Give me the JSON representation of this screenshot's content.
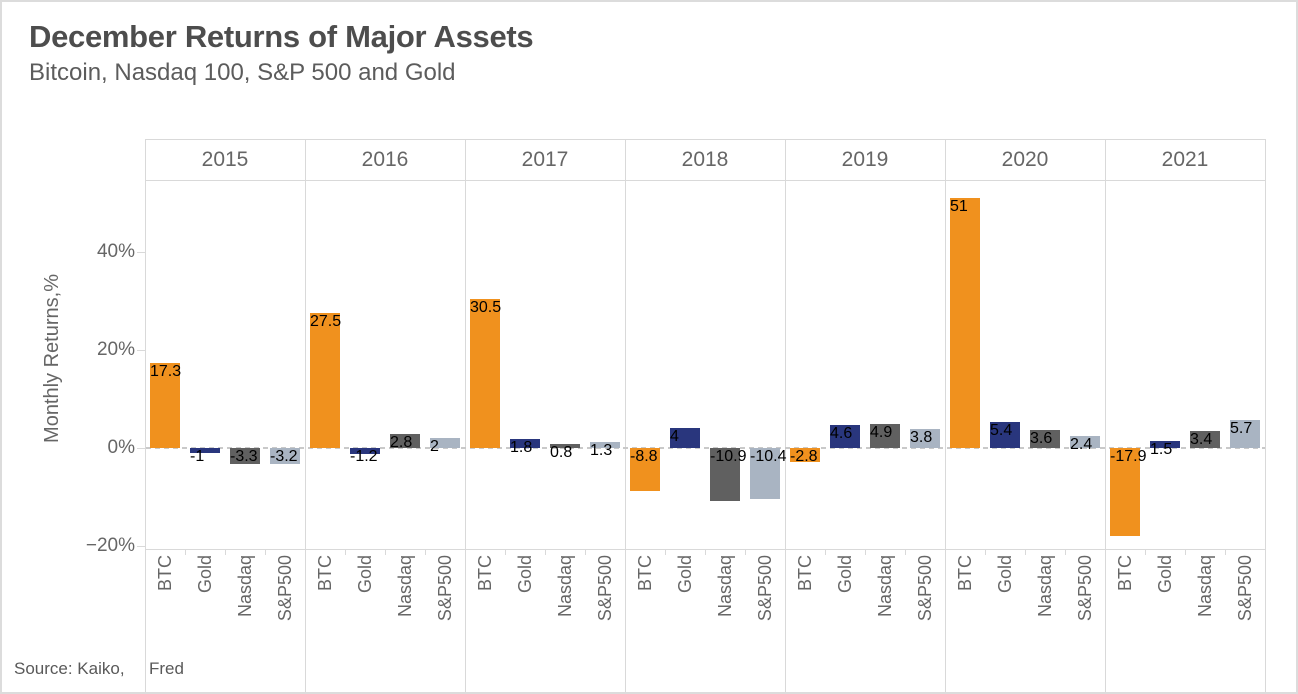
{
  "header": {
    "title": "December Returns of Major Assets",
    "subtitle": "Bitcoin, Nasdaq 100, S&P 500 and Gold"
  },
  "chart_data": {
    "type": "bar",
    "title": "December Returns of Major Assets",
    "subtitle": "Bitcoin, Nasdaq 100, S&P 500 and Gold",
    "xlabel": "",
    "ylabel": "Monthly Returns,%",
    "ylim": [
      -22,
      55
    ],
    "grid": false,
    "legend": "none",
    "zero_line_style": "dashed",
    "y_ticks": [
      {
        "label": "40%",
        "value": 40
      },
      {
        "label": "20%",
        "value": 20
      },
      {
        "label": "0%",
        "value": 0
      },
      {
        "label": "−20%",
        "value": -20
      }
    ],
    "categories": [
      "2015",
      "2016",
      "2017",
      "2018",
      "2019",
      "2020",
      "2021"
    ],
    "bar_categories": [
      "BTC",
      "Gold",
      "Nasdaq",
      "S&P500"
    ],
    "series": [
      {
        "name": "BTC",
        "color": "#F0911E",
        "values": [
          17.3,
          27.5,
          30.5,
          -8.8,
          -2.8,
          51.0,
          -17.9
        ]
      },
      {
        "name": "Gold",
        "color": "#29367D",
        "values": [
          -1.0,
          -1.2,
          1.8,
          4.0,
          4.6,
          5.4,
          1.5
        ]
      },
      {
        "name": "Nasdaq",
        "color": "#606060",
        "values": [
          -3.3,
          2.8,
          0.8,
          -10.9,
          4.9,
          3.6,
          3.4
        ]
      },
      {
        "name": "S&P500",
        "color": "#A9B4C2",
        "values": [
          -3.2,
          2.0,
          1.3,
          -10.4,
          3.8,
          2.4,
          5.7
        ]
      }
    ]
  },
  "footer": {
    "source_label": "Source: Kaiko,",
    "source_value": "Fred"
  },
  "colors": {
    "title_text": "#4d4d4d",
    "axis_text": "#666666",
    "grid_line": "#d9d9d9",
    "zero_line": "#c9c9c9",
    "background": "#ffffff"
  }
}
